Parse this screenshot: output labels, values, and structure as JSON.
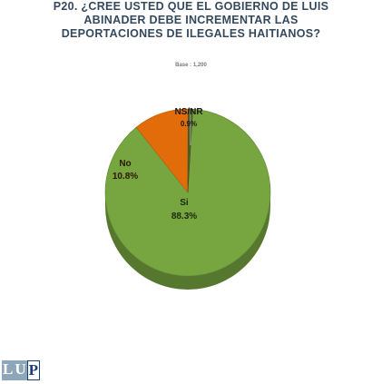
{
  "header": {
    "title_lines": [
      "P20. ¿CREE USTED QUE EL GOBIERNO DE LUIS",
      "ABINADER DEBE INCREMENTAR LAS",
      "DEPORTACIONES DE ILEGALES HAITIANOS?"
    ],
    "base_note": "Base : 1,200"
  },
  "logo": {
    "letters": [
      "L",
      "U",
      "P"
    ]
  },
  "chart_data": {
    "type": "pie",
    "title": "P20. ¿CREE USTED QUE EL GOBIERNO DE LUIS ABINADER DEBE INCREMENTAR LAS DEPORTACIONES DE ILEGALES HAITIANOS?",
    "categories": [
      "Si",
      "No",
      "NS/NR"
    ],
    "values": [
      88.3,
      10.8,
      0.9
    ],
    "value_labels": [
      "88.3%",
      "10.8%",
      "0.9%"
    ],
    "colors": [
      "#77a540",
      "#e36c0a",
      "#4f6228"
    ],
    "base": 1200
  }
}
